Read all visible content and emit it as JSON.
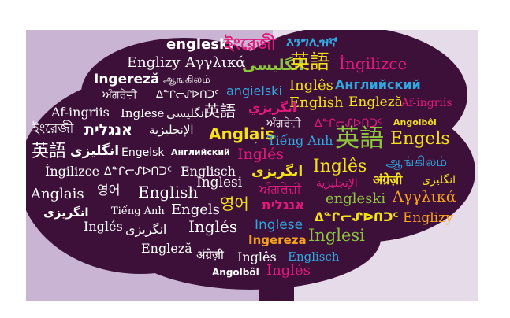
{
  "colors": {
    "left_background": "#c9b4d4",
    "right_background": "#e6dbe9",
    "tree": "#3c1038",
    "white": "#ffffff",
    "pink": "#e0197b",
    "yellow": "#f3e11a",
    "green": "#8cc63f",
    "blue": "#30a8e0",
    "orange": "#f7a21b"
  },
  "words": [
    "engleski",
    "ইংরেজী",
    "እንግሊዝኛ",
    "Englizy",
    "Αγγλικά",
    "انگلیسی",
    "英語",
    "İngilizce",
    "Ingereză",
    "ஆங்கிலம்",
    "angielski",
    "Inglês",
    "Английский",
    "ਅੰਗਰੇਜ਼ੀ",
    "ᐃᓐᒋᓕᔑᐅᑎᑐᑦ",
    "English",
    "Engleză",
    "Af-ingriis",
    "Af-ingriis",
    "Inglese",
    "انگلیسی",
    "英語",
    "انگريزي",
    "ਅੰਗਰੇਜ਼ੀ",
    "ᐃᓐᒋᓕᔑᐅᑎᑐᑦ",
    "Angolbôl",
    "ইংরেজী",
    "אנגלית",
    "الإنجليزية",
    "Anglais",
    "Tiếng Anh",
    "英語",
    "Engels",
    "英語",
    "انگلیزی",
    "Engelsk",
    "Английский",
    "Inglés",
    "İngilizce",
    "ᐃᓐᒋᓕᔑᐅᑎᑐᑦ",
    "Englisch",
    "انگریزی",
    "Inglês",
    "ஆங்கிலம்",
    "Anglais",
    "영어",
    "English",
    "Inglesi",
    "ਅੰਗਰੇਜ਼ੀ",
    "الإنجليزية",
    "अंग्रेज़ी",
    "انگلیزی",
    "انگریزی",
    "Tiếng Anh",
    "Engels",
    "영어",
    "אנגלית",
    "engleski",
    "Αγγλικά",
    "Inglés",
    "انگریزی",
    "Inglés",
    "Inglese",
    "ᐃᓐᒋᓕᔑᐅᑎᑐᑦ",
    "Englizy",
    "Engleză",
    "अंग्रेज़ी",
    "Inglês",
    "Ingereza",
    "Inglesi",
    "Englisch",
    "Angolbôl",
    "Inglés"
  ]
}
